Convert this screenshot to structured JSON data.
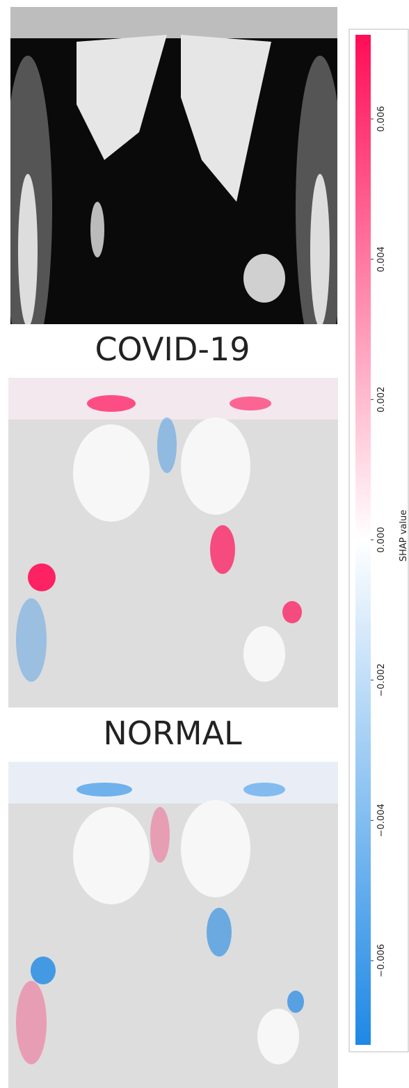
{
  "chart_data": {
    "type": "image",
    "panels": [
      {
        "title": null
      },
      {
        "title": "COVID-19"
      },
      {
        "title": "NORMAL"
      }
    ],
    "colorbar": {
      "label": "SHAP value",
      "clim": [
        -0.0072,
        0.0072
      ],
      "colormap": [
        "#1e88e5",
        "#ffffff",
        "#ff0d57"
      ],
      "ticks": [
        {
          "value": -0.006,
          "label": "−0.006"
        },
        {
          "value": -0.004,
          "label": "−0.004"
        },
        {
          "value": -0.002,
          "label": "−0.002"
        },
        {
          "value": 0,
          "label": "0.000"
        },
        0.002,
        0.004,
        0.006
      ]
    }
  }
}
